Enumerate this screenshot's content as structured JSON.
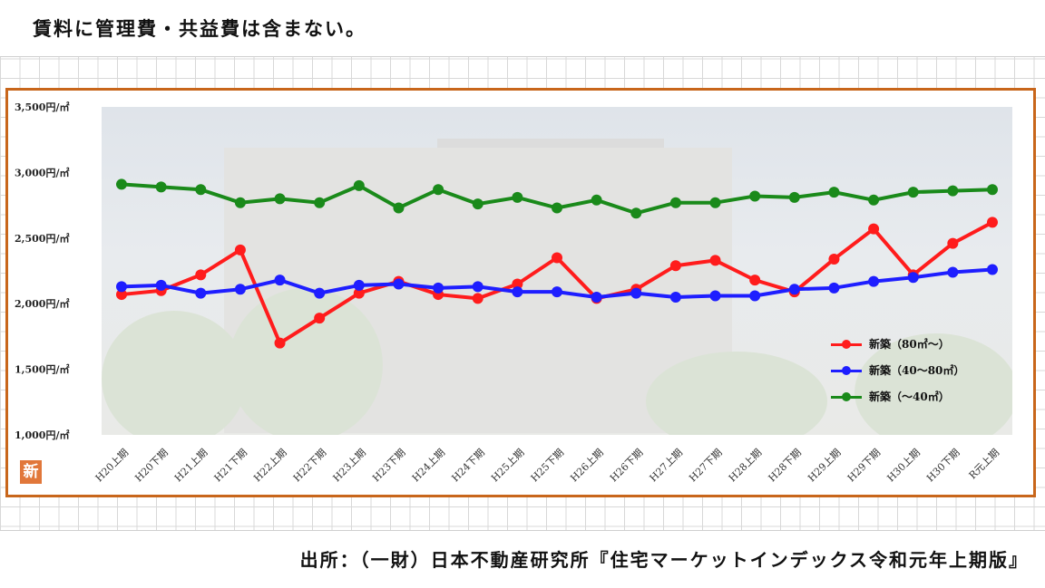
{
  "note_text": "賃料に管理費・共益費は含まない。",
  "source_text": "出所：（一財）日本不動産研究所『住宅マーケットインデックス令和元年上期版』",
  "badge_text": "新",
  "chart_data": {
    "type": "line",
    "title": "",
    "xlabel": "",
    "ylabel": "",
    "ylim": [
      1000,
      3500
    ],
    "y_ticks": [
      1000,
      1500,
      2000,
      2500,
      3000,
      3500
    ],
    "y_tick_labels": [
      "1,000円/㎡",
      "1,500円/㎡",
      "2,000円/㎡",
      "2,500円/㎡",
      "3,000円/㎡",
      "3,500円/㎡"
    ],
    "categories": [
      "H20上期",
      "H20下期",
      "H21上期",
      "H21下期",
      "H22上期",
      "H22下期",
      "H23上期",
      "H23下期",
      "H24上期",
      "H24下期",
      "H25上期",
      "H25下期",
      "H26上期",
      "H26下期",
      "H27上期",
      "H27下期",
      "H28上期",
      "H28下期",
      "H29上期",
      "H29下期",
      "H30上期",
      "H30下期",
      "R元上期"
    ],
    "legend_position": "right",
    "grid": false,
    "series": [
      {
        "name": "新築（80㎡～）",
        "color": "#ff1c1c",
        "values": [
          2070,
          2100,
          2220,
          2410,
          1700,
          1890,
          2080,
          2170,
          2070,
          2040,
          2150,
          2350,
          2040,
          2110,
          2290,
          2330,
          2180,
          2090,
          2340,
          2570,
          2220,
          2460,
          2620
        ]
      },
      {
        "name": "新築（40～80㎡）",
        "color": "#1e1eff",
        "values": [
          2130,
          2140,
          2080,
          2110,
          2180,
          2080,
          2140,
          2150,
          2120,
          2130,
          2090,
          2090,
          2050,
          2080,
          2050,
          2060,
          2060,
          2110,
          2120,
          2170,
          2200,
          2240,
          2260
        ]
      },
      {
        "name": "新築（～40㎡）",
        "color": "#1a8a1a",
        "values": [
          2910,
          2890,
          2870,
          2770,
          2800,
          2770,
          2900,
          2730,
          2870,
          2760,
          2810,
          2730,
          2790,
          2690,
          2770,
          2770,
          2820,
          2810,
          2850,
          2790,
          2850,
          2860,
          2870
        ]
      }
    ]
  }
}
